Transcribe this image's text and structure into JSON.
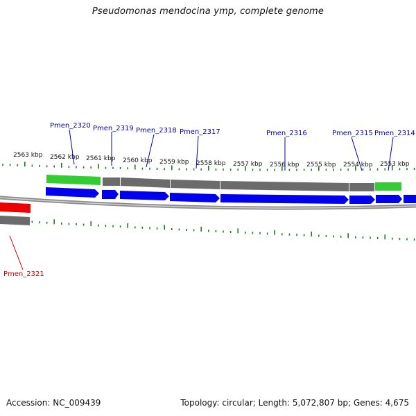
{
  "title": "Pseudomonas mendocina ymp, complete genome",
  "footer": {
    "accession": "Accession: NC_009439",
    "summary": "Topology: circular; Length: 5,072,807 bp; Genes: 4,675"
  },
  "colors": {
    "tick": "#1e7d1e",
    "backbone": "#8a8a8a",
    "cds_forward": "#0000ee",
    "gene_gray": "#6b6b6b",
    "gene_green": "#33cc33",
    "gene_red": "#ee0000",
    "label_blue": "#0000aa",
    "label_red": "#cc0000"
  },
  "ruler": {
    "labels": [
      "2563 kbp",
      "2562 kbp",
      "2561 kbp",
      "2560 kbp",
      "2559 kbp",
      "2558 kbp",
      "2557 kbp",
      "2556 kbp",
      "2555 kbp",
      "2554 kbp",
      "2553 kbp"
    ]
  },
  "genes": [
    {
      "label": "Pmen_2320",
      "color": "blue"
    },
    {
      "label": "Pmen_2319",
      "color": "blue"
    },
    {
      "label": "Pmen_2318",
      "color": "blue"
    },
    {
      "label": "Pmen_2317",
      "color": "blue"
    },
    {
      "label": "Pmen_2316",
      "color": "blue"
    },
    {
      "label": "Pmen_2315",
      "color": "blue"
    },
    {
      "label": "Pmen_2314",
      "color": "blue"
    },
    {
      "label": "Pmen_2321",
      "color": "red"
    }
  ]
}
